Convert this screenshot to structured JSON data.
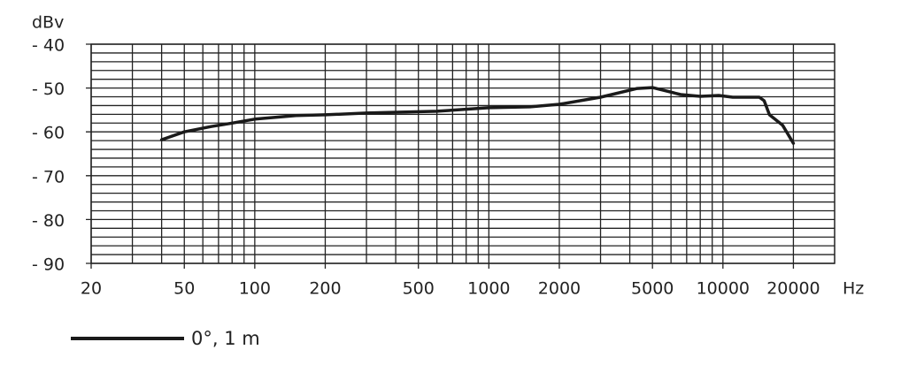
{
  "chart_data": {
    "type": "line",
    "ylabel": "dBv",
    "xlabel": "Hz",
    "xscale": "log",
    "grid": true,
    "xlim": [
      20,
      30000
    ],
    "ylim": [
      -90,
      -40
    ],
    "xticks": [
      20,
      50,
      100,
      200,
      500,
      1000,
      2000,
      5000,
      10000,
      20000
    ],
    "xminorticks": [
      30,
      40,
      60,
      70,
      80,
      90,
      300,
      400,
      600,
      700,
      800,
      900,
      3000,
      4000,
      6000,
      7000,
      8000,
      9000
    ],
    "yticks": [
      {
        "value": -40,
        "label": "- 40"
      },
      {
        "value": -50,
        "label": "- 50"
      },
      {
        "value": -60,
        "label": "- 60"
      },
      {
        "value": -70,
        "label": "- 70"
      },
      {
        "value": -80,
        "label": "- 80"
      },
      {
        "value": -90,
        "label": "- 90"
      }
    ],
    "yminorticks": [
      -42,
      -44,
      -46,
      -48,
      -52,
      -54,
      -56,
      -58,
      -62,
      -64,
      -66,
      -68,
      -72,
      -74,
      -76,
      -78,
      -82,
      -84,
      -86,
      -88
    ],
    "x": [
      40,
      50,
      65,
      78,
      100,
      150,
      200,
      300,
      600,
      1000,
      1500,
      2000,
      3000,
      4300,
      5000,
      6600,
      8000,
      9600,
      11000,
      14300,
      15000,
      15800,
      18000,
      20000
    ],
    "series": [
      {
        "name": "0°, 1 m",
        "color": "#1a1a1a",
        "values": [
          -61.8,
          -60,
          -58.8,
          -58.1,
          -57.1,
          -56.3,
          -56.1,
          -55.7,
          -55.3,
          -54.5,
          -54.3,
          -53.7,
          -52.1,
          -50.1,
          -49.9,
          -51.5,
          -51.9,
          -51.7,
          -52.1,
          -52.1,
          -52.9,
          -56.1,
          -58.5,
          -62.6
        ]
      }
    ]
  }
}
